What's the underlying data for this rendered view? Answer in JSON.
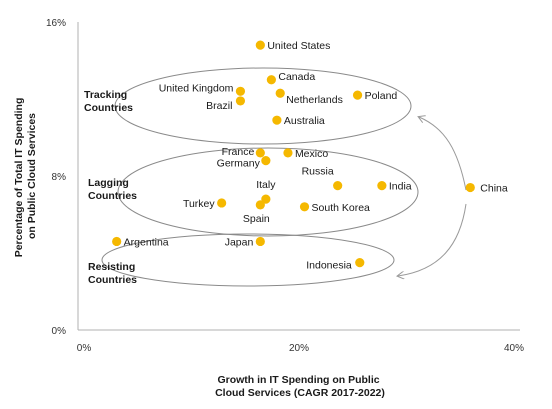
{
  "chart_data": {
    "type": "scatter",
    "xlabel": [
      "Growth in IT Spending on Public",
      "Cloud Services (CAGR 2017-2022)"
    ],
    "ylabel": [
      "Percentage of Total IT Spending",
      "on Public Cloud Services"
    ],
    "xlim": [
      0,
      40
    ],
    "ylim": [
      0,
      16
    ],
    "x_ticks": [
      "0%",
      "20%",
      "40%"
    ],
    "y_ticks": [
      "0%",
      "8%",
      "16%"
    ],
    "point_color": "#F5B800",
    "points": [
      {
        "label": "United States",
        "x": 16.5,
        "y": 14.8
      },
      {
        "label": "Canada",
        "x": 17.5,
        "y": 13.0
      },
      {
        "label": "United Kingdom",
        "x": 14.7,
        "y": 12.4
      },
      {
        "label": "Netherlands",
        "x": 18.3,
        "y": 12.3
      },
      {
        "label": "Poland",
        "x": 25.3,
        "y": 12.2
      },
      {
        "label": "Brazil",
        "x": 14.7,
        "y": 11.9
      },
      {
        "label": "Australia",
        "x": 18.0,
        "y": 10.9
      },
      {
        "label": "France",
        "x": 16.5,
        "y": 9.2
      },
      {
        "label": "Mexico",
        "x": 19.0,
        "y": 9.2
      },
      {
        "label": "Germany",
        "x": 17.0,
        "y": 8.8
      },
      {
        "label": "Russia",
        "x": 23.5,
        "y": 7.5
      },
      {
        "label": "India",
        "x": 27.5,
        "y": 7.5
      },
      {
        "label": "China",
        "x": 35.5,
        "y": 7.4
      },
      {
        "label": "Italy",
        "x": 17.0,
        "y": 6.8
      },
      {
        "label": "Turkey",
        "x": 13.0,
        "y": 6.6
      },
      {
        "label": "Spain",
        "x": 16.5,
        "y": 6.5
      },
      {
        "label": "South Korea",
        "x": 20.5,
        "y": 6.4
      },
      {
        "label": "Argentina",
        "x": 3.5,
        "y": 4.6
      },
      {
        "label": "Japan",
        "x": 16.5,
        "y": 4.6
      },
      {
        "label": "Indonesia",
        "x": 25.5,
        "y": 3.5
      }
    ],
    "groups": [
      {
        "label": [
          "Tracking",
          "Countries"
        ]
      },
      {
        "label": [
          "Lagging",
          "Countries"
        ]
      },
      {
        "label": [
          "Resisting",
          "Countries"
        ]
      }
    ]
  }
}
